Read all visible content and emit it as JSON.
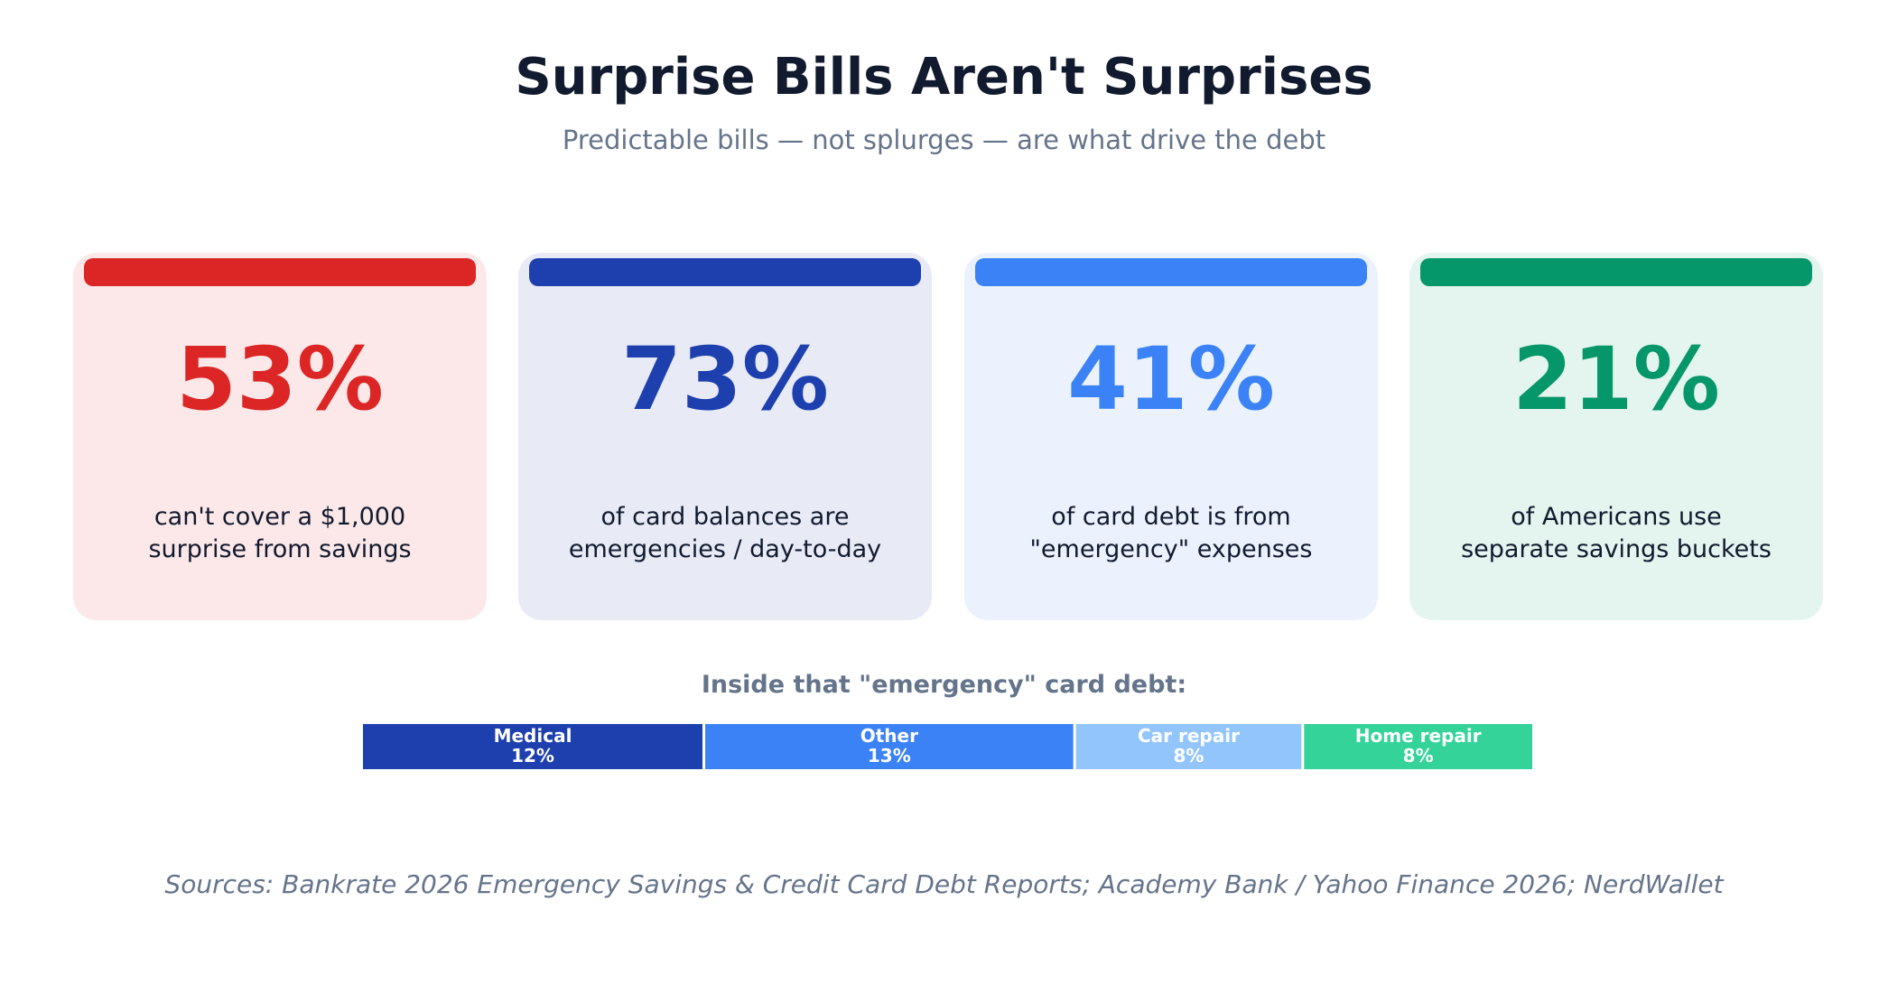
{
  "header": {
    "title": "Surprise Bills Aren't Surprises",
    "subtitle": "Predictable bills — not splurges — are what drive the debt"
  },
  "cards": [
    {
      "value": "53%",
      "line1": "can't cover a $1,000",
      "line2": "surprise from savings",
      "accent": "#dc2626",
      "background": "#fce8e8"
    },
    {
      "value": "73%",
      "line1": "of card balances are",
      "line2": "emergencies / day-to-day",
      "accent": "#1e40af",
      "background": "#e8ebf6"
    },
    {
      "value": "41%",
      "line1": "of card debt is from",
      "line2": "\"emergency\" expenses",
      "accent": "#3b82f6",
      "background": "#ebf2fe"
    },
    {
      "value": "21%",
      "line1": "of Americans use",
      "line2": "separate savings buckets",
      "accent": "#059669",
      "background": "#e4f4ee"
    }
  ],
  "breakdown": {
    "title": "Inside that \"emergency\" card debt:"
  },
  "chart_data": {
    "type": "bar",
    "orientation": "horizontal-stacked",
    "title": "Inside that \"emergency\" card debt:",
    "categories": [
      "Medical",
      "Other",
      "Car repair",
      "Home repair"
    ],
    "values": [
      12,
      13,
      8,
      8
    ],
    "value_labels": [
      "12%",
      "13%",
      "8%",
      "8%"
    ],
    "colors": [
      "#1e40af",
      "#3b82f6",
      "#93c5fd",
      "#34d399"
    ],
    "label_color": "#ffffff"
  },
  "footer": {
    "sources": "Sources: Bankrate 2026 Emergency Savings & Credit Card Debt Reports; Academy Bank / Yahoo Finance 2026; NerdWallet"
  }
}
